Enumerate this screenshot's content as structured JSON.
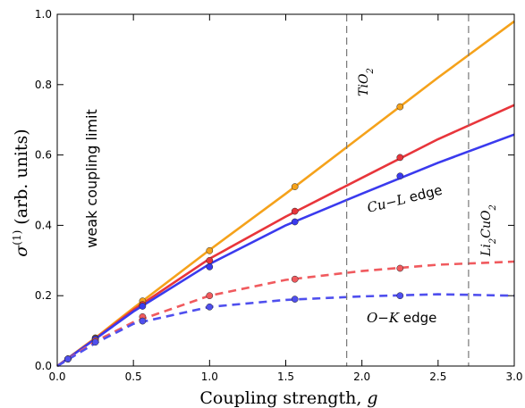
{
  "chart_data": {
    "type": "line",
    "title": "",
    "xlabel": "Coupling strength, g",
    "ylabel": "σ(1) (arb. units)",
    "xlim": [
      0.0,
      3.0
    ],
    "ylim": [
      0.0,
      1.0
    ],
    "xticks": [
      "0.0",
      "0.5",
      "1.0",
      "1.5",
      "2.0",
      "2.5",
      "3.0"
    ],
    "yticks": [
      "0.0",
      "0.2",
      "0.4",
      "0.6",
      "0.8",
      "1.0"
    ],
    "grid": false,
    "series": [
      {
        "name": "TiO2",
        "color": "#f5a21b",
        "style": "solid",
        "curve": [
          [
            0,
            0
          ],
          [
            0.25,
            0.08
          ],
          [
            0.5,
            0.165
          ],
          [
            1.0,
            0.33
          ],
          [
            1.5,
            0.49
          ],
          [
            2.0,
            0.655
          ],
          [
            2.5,
            0.82
          ],
          [
            3.0,
            0.98
          ]
        ],
        "points": [
          [
            0.07,
            0.02
          ],
          [
            0.25,
            0.08
          ],
          [
            0.56,
            0.185
          ],
          [
            1.0,
            0.328
          ],
          [
            1.56,
            0.51
          ],
          [
            2.25,
            0.737
          ]
        ]
      },
      {
        "name": "Cu-L edge",
        "color": "#e8353b",
        "style": "solid",
        "curve": [
          [
            0,
            0
          ],
          [
            0.25,
            0.078
          ],
          [
            0.5,
            0.16
          ],
          [
            1.0,
            0.305
          ],
          [
            1.5,
            0.425
          ],
          [
            2.0,
            0.535
          ],
          [
            2.5,
            0.645
          ],
          [
            3.0,
            0.742
          ]
        ],
        "points": [
          [
            0.07,
            0.02
          ],
          [
            0.25,
            0.078
          ],
          [
            0.56,
            0.175
          ],
          [
            1.0,
            0.3
          ],
          [
            1.56,
            0.44
          ],
          [
            2.25,
            0.593
          ]
        ]
      },
      {
        "name": "Cu-L edge",
        "color": "#3a3aee",
        "style": "solid",
        "curve": [
          [
            0,
            0
          ],
          [
            0.25,
            0.077
          ],
          [
            0.5,
            0.155
          ],
          [
            1.0,
            0.29
          ],
          [
            1.5,
            0.4
          ],
          [
            2.0,
            0.49
          ],
          [
            2.5,
            0.578
          ],
          [
            3.0,
            0.658
          ]
        ],
        "points": [
          [
            0.07,
            0.02
          ],
          [
            0.25,
            0.077
          ],
          [
            0.56,
            0.17
          ],
          [
            1.0,
            0.282
          ],
          [
            1.56,
            0.41
          ],
          [
            2.25,
            0.54
          ]
        ]
      },
      {
        "name": "O-K edge",
        "color": "#f05a5e",
        "style": "dashed",
        "curve": [
          [
            0,
            0
          ],
          [
            0.25,
            0.07
          ],
          [
            0.5,
            0.125
          ],
          [
            1.0,
            0.2
          ],
          [
            1.5,
            0.245
          ],
          [
            2.0,
            0.27
          ],
          [
            2.5,
            0.288
          ],
          [
            3.0,
            0.297
          ]
        ],
        "points": [
          [
            0.07,
            0.02
          ],
          [
            0.25,
            0.072
          ],
          [
            0.56,
            0.14
          ],
          [
            1.0,
            0.2
          ],
          [
            1.56,
            0.247
          ],
          [
            2.25,
            0.278
          ]
        ]
      },
      {
        "name": "O-K edge",
        "color": "#4f4fee",
        "style": "dashed",
        "curve": [
          [
            0,
            0
          ],
          [
            0.25,
            0.065
          ],
          [
            0.5,
            0.12
          ],
          [
            1.0,
            0.168
          ],
          [
            1.5,
            0.188
          ],
          [
            2.0,
            0.198
          ],
          [
            2.5,
            0.204
          ],
          [
            3.0,
            0.2
          ]
        ],
        "points": [
          [
            0.07,
            0.02
          ],
          [
            0.25,
            0.068
          ],
          [
            0.56,
            0.128
          ],
          [
            1.0,
            0.168
          ],
          [
            1.56,
            0.19
          ],
          [
            2.25,
            0.2
          ]
        ]
      }
    ],
    "vlines": [
      {
        "x": 1.9,
        "label": "TiO2"
      },
      {
        "x": 2.7,
        "label": "Li2CuO2"
      }
    ],
    "annotations": {
      "weak_coupling": "weak coupling limit",
      "cu_l": "Cu−L",
      "cu_l_suffix": " edge",
      "o_k": "O−K",
      "o_k_suffix": " edge"
    }
  }
}
